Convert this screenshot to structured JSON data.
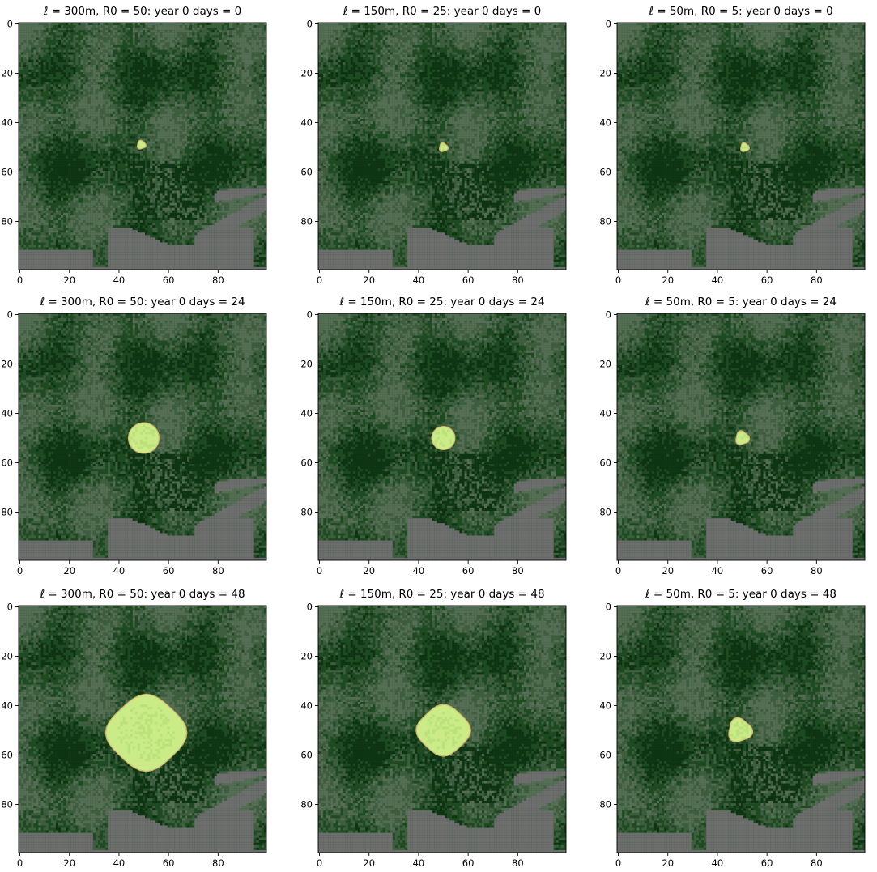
{
  "chart_data": {
    "type": "heatmap",
    "description_grid": "100x100 land-cover raster with simulated spread region",
    "colors": {
      "water": "#6e6e6e",
      "forest_dark": "#0d3312",
      "forest_mid": "#1e4a22",
      "forest_light": "#3f5e3f",
      "grass": "#556e55",
      "spread_fill": "#c9f08a",
      "spread_edge": "#e8c070"
    },
    "panels": [
      {
        "row": 0,
        "col": 0,
        "title": "ℓ = 300m,  R0 = 50:  year 0 days = 0",
        "ell_m": 300,
        "R0": 50,
        "year": 0,
        "days": 0,
        "xlim": [
          0,
          99
        ],
        "ylim": [
          99,
          0
        ],
        "xticks": [
          "0",
          "20",
          "40",
          "60",
          "80"
        ],
        "yticks": [
          "0",
          "20",
          "40",
          "60",
          "80"
        ],
        "spread_center": [
          49,
          49
        ],
        "spread_radius": 1.5,
        "spread_shape": "blob"
      },
      {
        "row": 0,
        "col": 1,
        "title": "ℓ = 150m,  R0 = 25:  year 0 days = 0",
        "ell_m": 150,
        "R0": 25,
        "year": 0,
        "days": 0,
        "xlim": [
          0,
          99
        ],
        "ylim": [
          99,
          0
        ],
        "xticks": [
          "0",
          "20",
          "40",
          "60",
          "80"
        ],
        "yticks": [
          "0",
          "20",
          "40",
          "60",
          "80"
        ],
        "spread_center": [
          50,
          50
        ],
        "spread_radius": 1.5,
        "spread_shape": "blob"
      },
      {
        "row": 0,
        "col": 2,
        "title": "ℓ = 50m,  R0 = 5:  year 0 days = 0",
        "ell_m": 50,
        "R0": 5,
        "year": 0,
        "days": 0,
        "xlim": [
          0,
          99
        ],
        "ylim": [
          99,
          0
        ],
        "xticks": [
          "0",
          "20",
          "40",
          "60",
          "80"
        ],
        "yticks": [
          "0",
          "20",
          "40",
          "60",
          "80"
        ],
        "spread_center": [
          51,
          50
        ],
        "spread_radius": 1.5,
        "spread_shape": "blob"
      },
      {
        "row": 1,
        "col": 0,
        "title": "ℓ = 300m,  R0 = 50:  year 0 days = 24",
        "ell_m": 300,
        "R0": 50,
        "year": 0,
        "days": 24,
        "xlim": [
          0,
          99
        ],
        "ylim": [
          99,
          0
        ],
        "xticks": [
          "0",
          "20",
          "40",
          "60",
          "80"
        ],
        "yticks": [
          "0",
          "20",
          "40",
          "60",
          "80"
        ],
        "spread_center": [
          50,
          50
        ],
        "spread_radius": 6,
        "spread_shape": "round"
      },
      {
        "row": 1,
        "col": 1,
        "title": "ℓ = 150m,  R0 = 25:  year 0 days = 24",
        "ell_m": 150,
        "R0": 25,
        "year": 0,
        "days": 24,
        "xlim": [
          0,
          99
        ],
        "ylim": [
          99,
          0
        ],
        "xticks": [
          "0",
          "20",
          "40",
          "60",
          "80"
        ],
        "yticks": [
          "0",
          "20",
          "40",
          "60",
          "80"
        ],
        "spread_center": [
          50,
          50
        ],
        "spread_radius": 4.5,
        "spread_shape": "round"
      },
      {
        "row": 1,
        "col": 2,
        "title": "ℓ = 50m,  R0 = 5:  year 0 days = 24",
        "ell_m": 50,
        "R0": 5,
        "year": 0,
        "days": 24,
        "xlim": [
          0,
          99
        ],
        "ylim": [
          99,
          0
        ],
        "xticks": [
          "0",
          "20",
          "40",
          "60",
          "80"
        ],
        "yticks": [
          "0",
          "20",
          "40",
          "60",
          "80"
        ],
        "spread_center": [
          50,
          50
        ],
        "spread_radius": 2.5,
        "spread_shape": "blob"
      },
      {
        "row": 2,
        "col": 0,
        "title": "ℓ = 300m,  R0 = 50:  year 0 days = 48",
        "ell_m": 300,
        "R0": 50,
        "year": 0,
        "days": 48,
        "xlim": [
          0,
          99
        ],
        "ylim": [
          99,
          0
        ],
        "xticks": [
          "0",
          "20",
          "40",
          "60",
          "80"
        ],
        "yticks": [
          "0",
          "20",
          "40",
          "60",
          "80"
        ],
        "spread_center": [
          51,
          51
        ],
        "spread_radius": 13.5,
        "spread_shape": "diamond"
      },
      {
        "row": 2,
        "col": 1,
        "title": "ℓ = 150m,  R0 = 25:  year 0 days = 48",
        "ell_m": 150,
        "R0": 25,
        "year": 0,
        "days": 48,
        "xlim": [
          0,
          99
        ],
        "ylim": [
          99,
          0
        ],
        "xticks": [
          "0",
          "20",
          "40",
          "60",
          "80"
        ],
        "yticks": [
          "0",
          "20",
          "40",
          "60",
          "80"
        ],
        "spread_center": [
          50,
          50
        ],
        "spread_radius": 9,
        "spread_shape": "diamond"
      },
      {
        "row": 2,
        "col": 2,
        "title": "ℓ = 50m,  R0 = 5:  year 0 days = 48",
        "ell_m": 50,
        "R0": 5,
        "year": 0,
        "days": 48,
        "xlim": [
          0,
          99
        ],
        "ylim": [
          99,
          0
        ],
        "xticks": [
          "0",
          "20",
          "40",
          "60",
          "80"
        ],
        "yticks": [
          "0",
          "20",
          "40",
          "60",
          "80"
        ],
        "spread_center": [
          49,
          50
        ],
        "spread_radius": 4.5,
        "spread_shape": "blob"
      }
    ]
  }
}
